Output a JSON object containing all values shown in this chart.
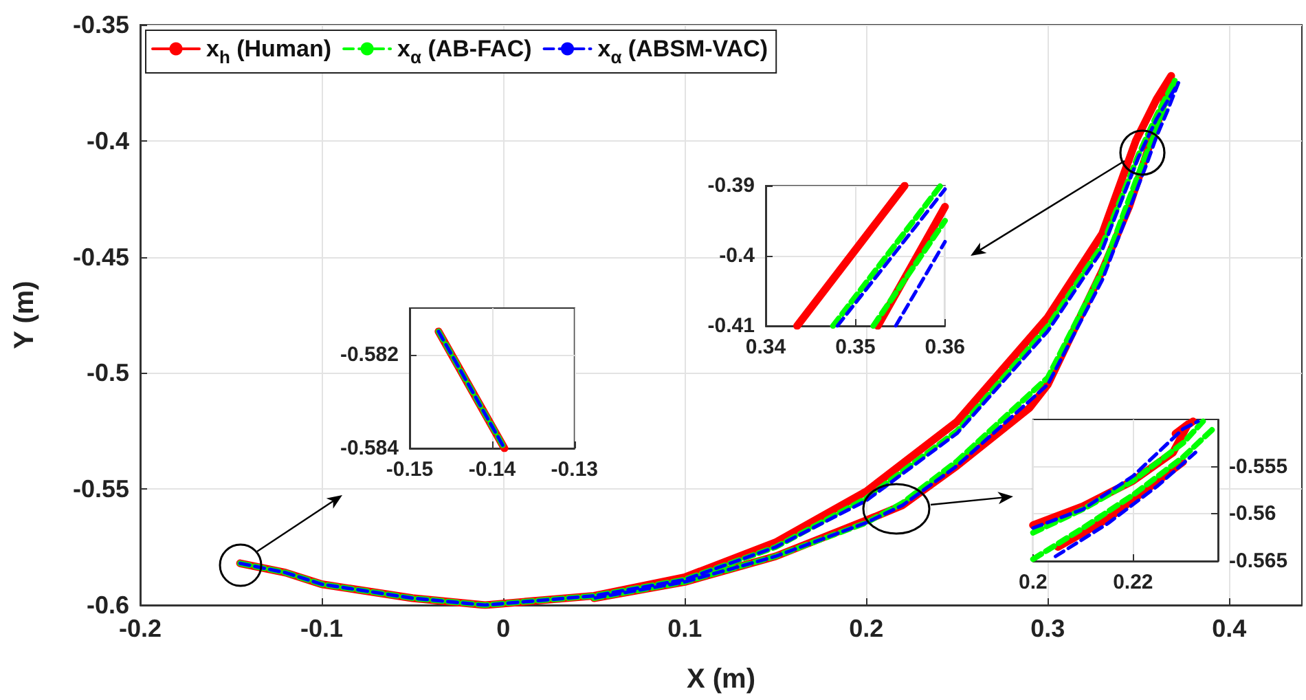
{
  "chart_data": [
    {
      "type": "line",
      "xlabel": "X (m)",
      "ylabel": "Y (m)",
      "xlim": [
        -0.2,
        0.44
      ],
      "xticks": [
        -0.2,
        -0.1,
        0,
        0.1,
        0.2,
        0.3,
        0.4
      ],
      "ylim": [
        -0.6,
        -0.35
      ],
      "yticks": [
        -0.6,
        -0.55,
        -0.5,
        -0.45,
        -0.4,
        -0.35
      ],
      "grid": true,
      "legend": "top left",
      "series": [
        {
          "name": "x$_{h}$ (Human)",
          "color": "#ff0000",
          "line_style": "solid",
          "x": [
            -0.145,
            -0.12,
            -0.1,
            -0.05,
            -0.01,
            0.05,
            0.1,
            0.15,
            0.2,
            0.25,
            0.3,
            0.33,
            0.3485,
            0.36,
            0.368,
            0.362,
            0.356,
            0.345,
            0.33,
            0.3,
            0.29,
            0.25,
            0.22,
            0.2,
            0.15,
            0.1,
            0.05
          ],
          "values": [
            -0.582,
            -0.586,
            -0.591,
            -0.597,
            -0.6,
            -0.596,
            -0.588,
            -0.573,
            -0.551,
            -0.521,
            -0.476,
            -0.44,
            -0.4,
            -0.382,
            -0.372,
            -0.389,
            -0.402,
            -0.428,
            -0.456,
            -0.505,
            -0.515,
            -0.54,
            -0.557,
            -0.5635,
            -0.579,
            -0.59,
            -0.597
          ]
        },
        {
          "name": "x$_{α}$ (AB-FAC)",
          "color": "#00ff00",
          "line_style": "dashed",
          "x": [
            -0.145,
            -0.12,
            -0.1,
            -0.05,
            -0.01,
            0.05,
            0.1,
            0.15,
            0.2,
            0.25,
            0.3,
            0.33,
            0.35,
            0.36,
            0.37,
            0.364,
            0.36,
            0.352,
            0.33,
            0.3,
            0.25,
            0.22,
            0.2,
            0.15,
            0.1,
            0.05
          ],
          "values": [
            -0.582,
            -0.586,
            -0.591,
            -0.597,
            -0.6,
            -0.596,
            -0.589,
            -0.575,
            -0.554,
            -0.525,
            -0.48,
            -0.445,
            -0.406,
            -0.389,
            -0.374,
            -0.386,
            -0.395,
            -0.41,
            -0.456,
            -0.502,
            -0.538,
            -0.556,
            -0.5645,
            -0.579,
            -0.59,
            -0.597
          ]
        },
        {
          "name": "x$_{α}$ (ABSM-VAC)",
          "color": "#0000ff",
          "line_style": "dashed",
          "x": [
            -0.145,
            -0.12,
            -0.1,
            -0.05,
            -0.01,
            0.05,
            0.1,
            0.15,
            0.2,
            0.25,
            0.3,
            0.33,
            0.35,
            0.36,
            0.372,
            0.366,
            0.36,
            0.3545,
            0.33,
            0.3,
            0.25,
            0.22,
            0.2,
            0.15,
            0.1,
            0.05
          ],
          "values": [
            -0.582,
            -0.586,
            -0.591,
            -0.597,
            -0.6,
            -0.596,
            -0.589,
            -0.575,
            -0.555,
            -0.526,
            -0.482,
            -0.447,
            -0.407,
            -0.3905,
            -0.375,
            -0.387,
            -0.398,
            -0.41,
            -0.46,
            -0.505,
            -0.54,
            -0.557,
            -0.5645,
            -0.579,
            -0.59,
            -0.597
          ]
        }
      ]
    },
    {
      "type": "line",
      "xlim": [
        0.34,
        0.36
      ],
      "xticks": [
        0.34,
        0.35,
        0.36
      ],
      "ylim": [
        -0.41,
        -0.39
      ],
      "yticks": [
        -0.41,
        -0.4,
        -0.39
      ],
      "grid": true,
      "series": [
        {
          "color": "#ff0000",
          "line_style": "solid",
          "x": [
            0.3435,
            0.3555
          ],
          "values": [
            -0.41,
            -0.39
          ]
        },
        {
          "color": "#ff0000",
          "line_style": "solid",
          "x": [
            0.3525,
            0.36
          ],
          "values": [
            -0.41,
            -0.393
          ]
        },
        {
          "color": "#00ff00",
          "line_style": "dashed",
          "x": [
            0.3475,
            0.3595
          ],
          "values": [
            -0.41,
            -0.39
          ]
        },
        {
          "color": "#00ff00",
          "line_style": "dashed",
          "x": [
            0.352,
            0.36
          ],
          "values": [
            -0.41,
            -0.395
          ]
        },
        {
          "color": "#0000ff",
          "line_style": "dashed",
          "x": [
            0.348,
            0.36
          ],
          "values": [
            -0.41,
            -0.3905
          ]
        },
        {
          "color": "#0000ff",
          "line_style": "dashed",
          "x": [
            0.3545,
            0.36
          ],
          "values": [
            -0.41,
            -0.398
          ]
        }
      ]
    },
    {
      "type": "line",
      "xlim": [
        -0.15,
        -0.13
      ],
      "xticks": [
        -0.15,
        -0.14,
        -0.13
      ],
      "ylim": [
        -0.584,
        -0.581
      ],
      "yticks": [
        -0.584,
        -0.582
      ],
      "grid": true,
      "series": [
        {
          "color": "#ff0000",
          "line_style": "solid",
          "x": [
            -0.1465,
            -0.1385
          ],
          "values": [
            -0.5815,
            -0.584
          ]
        },
        {
          "color": "#00ff00",
          "line_style": "dashed",
          "x": [
            -0.1465,
            -0.1385
          ],
          "values": [
            -0.5815,
            -0.584
          ]
        },
        {
          "color": "#0000ff",
          "line_style": "dashed",
          "x": [
            -0.1465,
            -0.1385
          ],
          "values": [
            -0.5815,
            -0.584
          ]
        }
      ]
    },
    {
      "type": "line",
      "xlim": [
        0.2,
        0.237
      ],
      "xticks": [
        0.2,
        0.22
      ],
      "ylim": [
        -0.565,
        -0.55
      ],
      "yticks": [
        -0.565,
        -0.56,
        -0.555
      ],
      "grid": true,
      "series": [
        {
          "color": "#ff0000",
          "line_style": "solid",
          "x": [
            0.2,
            0.21,
            0.22,
            0.228,
            0.231,
            0.2285,
            0.232
          ],
          "values": [
            -0.5612,
            -0.5592,
            -0.5565,
            -0.5535,
            -0.5505,
            -0.5515,
            -0.5502
          ]
        },
        {
          "color": "#ff0000",
          "line_style": "solid",
          "x": [
            0.205,
            0.215,
            0.225,
            0.23
          ],
          "values": [
            -0.5635,
            -0.5605,
            -0.5565,
            -0.5545
          ]
        },
        {
          "color": "#00ff00",
          "line_style": "dashed",
          "x": [
            0.2,
            0.21,
            0.22,
            0.23,
            0.234
          ],
          "values": [
            -0.562,
            -0.5595,
            -0.5565,
            -0.5525,
            -0.5502
          ]
        },
        {
          "color": "#00ff00",
          "line_style": "dashed",
          "x": [
            0.2,
            0.21,
            0.22,
            0.23,
            0.236
          ],
          "values": [
            -0.5648,
            -0.5615,
            -0.558,
            -0.554,
            -0.551
          ]
        },
        {
          "color": "#0000ff",
          "line_style": "dashed",
          "x": [
            0.2,
            0.21,
            0.22,
            0.23,
            0.233
          ],
          "values": [
            -0.5615,
            -0.5595,
            -0.556,
            -0.551,
            -0.5502
          ]
        },
        {
          "color": "#0000ff",
          "line_style": "dashed",
          "x": [
            0.2045,
            0.215,
            0.225,
            0.2325
          ],
          "values": [
            -0.5645,
            -0.561,
            -0.557,
            -0.5535
          ]
        }
      ]
    }
  ]
}
